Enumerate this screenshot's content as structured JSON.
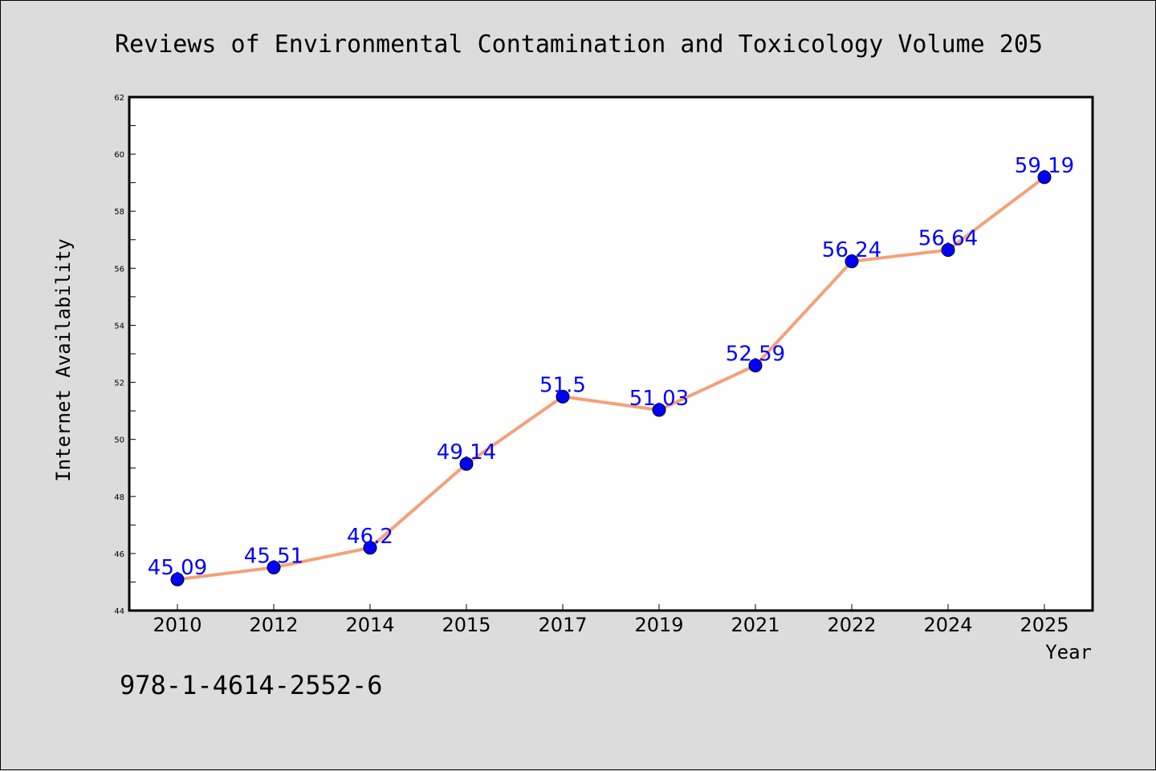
{
  "chart_data": {
    "type": "line",
    "title": "Reviews of Environmental Contamination and Toxicology Volume 205",
    "xlabel": "Year",
    "ylabel": "Internet Availability",
    "categories": [
      "2010",
      "2012",
      "2014",
      "2015",
      "2017",
      "2019",
      "2021",
      "2022",
      "2024",
      "2025"
    ],
    "series": [
      {
        "values": [
          45.09,
          45.51,
          46.2,
          49.14,
          51.5,
          51.03,
          52.59,
          56.24,
          56.64,
          59.19
        ],
        "labels": [
          "45.09",
          "45.51",
          "46.2",
          "49.14",
          "51.5",
          "51.03",
          "52.59",
          "56.24",
          "56.64",
          "59.19"
        ]
      }
    ],
    "ylim": [
      44,
      62
    ],
    "yticks": [
      "44",
      "46",
      "48",
      "50",
      "52",
      "54",
      "56",
      "58",
      "60",
      "62"
    ],
    "grid": false,
    "line_color": "#f4a07a",
    "marker_color": "#0000ff",
    "label_color": "#0000ff",
    "plot_background": "#ffffff",
    "figure_background": "#dcdcdc"
  },
  "note": "978-1-4614-2552-6"
}
